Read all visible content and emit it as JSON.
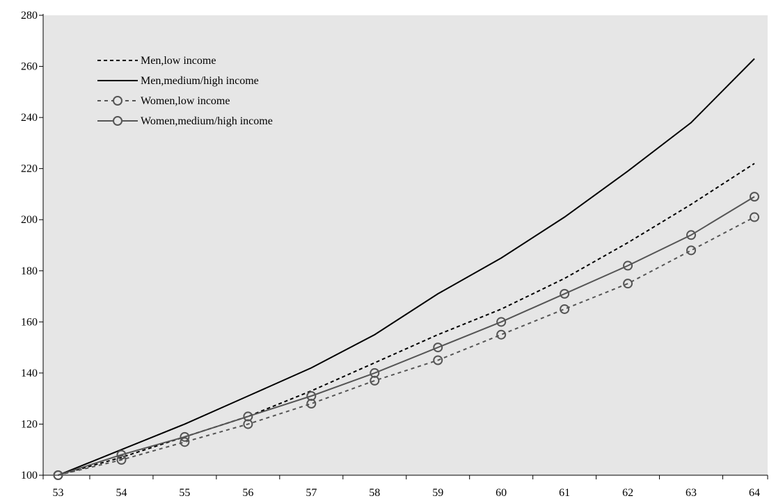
{
  "chart_data": {
    "type": "line",
    "title": "",
    "xlabel": "",
    "ylabel": "",
    "x": [
      53,
      54,
      55,
      56,
      57,
      58,
      59,
      60,
      61,
      62,
      63,
      64
    ],
    "xlim": [
      53,
      64
    ],
    "ylim": [
      100,
      280
    ],
    "yticks": [
      100,
      120,
      140,
      160,
      180,
      200,
      220,
      240,
      260,
      280
    ],
    "grid": false,
    "legend_position": "top-left",
    "plot_background": "#e6e6e6",
    "series": [
      {
        "name": "Men,low income",
        "values": [
          100,
          107,
          115,
          123,
          133,
          144,
          155,
          165,
          177,
          191,
          206,
          222
        ],
        "color": "#000000",
        "line": "dashed",
        "marker": "none"
      },
      {
        "name": "Men,medium/high income",
        "values": [
          100,
          110,
          120,
          131,
          142,
          155,
          171,
          185,
          201,
          219,
          238,
          263
        ],
        "color": "#000000",
        "line": "solid",
        "marker": "none"
      },
      {
        "name": "Women,low income",
        "values": [
          100,
          106,
          113,
          120,
          128,
          137,
          145,
          155,
          165,
          175,
          188,
          201
        ],
        "color": "#555555",
        "line": "dashed",
        "marker": "circle"
      },
      {
        "name": "Women,medium/high income",
        "values": [
          100,
          108,
          115,
          123,
          131,
          140,
          150,
          160,
          171,
          182,
          194,
          209
        ],
        "color": "#555555",
        "line": "solid",
        "marker": "circle"
      }
    ]
  }
}
